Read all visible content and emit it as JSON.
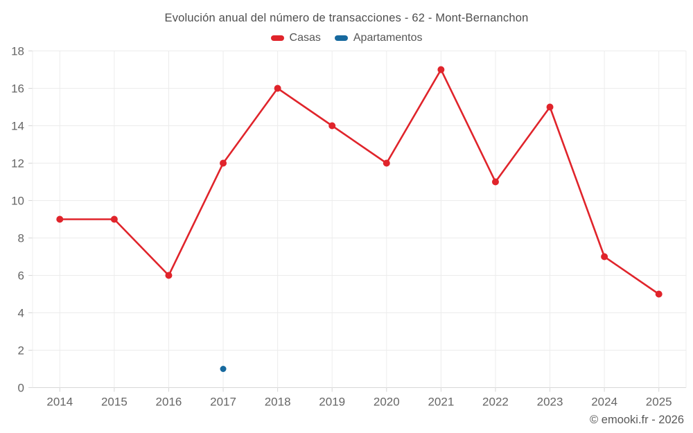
{
  "chart_data": {
    "type": "line",
    "title": "Evolución anual del número de transacciones - 62 - Mont-Bernanchon",
    "categories": [
      "2014",
      "2015",
      "2016",
      "2017",
      "2018",
      "2019",
      "2020",
      "2021",
      "2022",
      "2023",
      "2024",
      "2025"
    ],
    "series": [
      {
        "name": "Casas",
        "color": "#e0242b",
        "values": [
          9,
          9,
          6,
          12,
          16,
          14,
          12,
          17,
          11,
          15,
          7,
          5
        ]
      },
      {
        "name": "Apartamentos",
        "color": "#17699e",
        "values": [
          null,
          null,
          null,
          1,
          null,
          null,
          null,
          null,
          null,
          null,
          null,
          null
        ]
      }
    ],
    "ylim": [
      0,
      18
    ],
    "ytick_step": 2,
    "grid": true,
    "legend_position": "top"
  },
  "watermark": "© emooki.fr - 2026",
  "colors": {
    "title_text": "#4e4e4e",
    "legend_text": "#555555",
    "axis_text": "#666666",
    "grid_line": "#ececec",
    "axis_line": "#d6d6d6",
    "background": "#ffffff"
  }
}
